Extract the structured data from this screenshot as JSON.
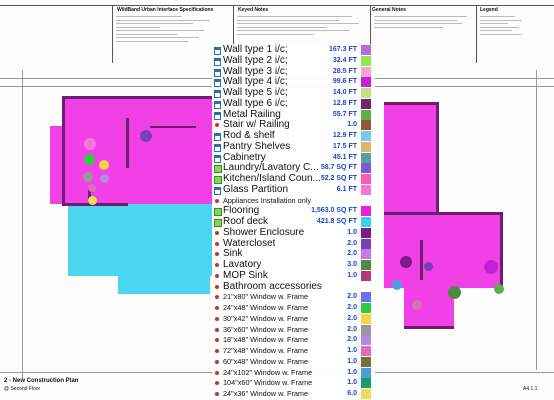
{
  "header": {
    "spec_title": "WildBand Urban Interface Specifications",
    "keyed_notes_title": "Keyed Notes",
    "general_notes_title": "General Notes",
    "legend_title": "Legend"
  },
  "takeoff_items": [
    {
      "label": "Wall type 1 i/c;",
      "qty": "167.3 FT",
      "icon": "wall-icon",
      "color": "#b86cd8"
    },
    {
      "label": "Wall type 2 i/c;",
      "qty": "32.4 FT",
      "icon": "wall-icon",
      "color": "#8ee84e"
    },
    {
      "label": "Wall type 3 i/c;",
      "qty": "28.5 FT",
      "icon": "wall-icon",
      "color": "#f3a6d6"
    },
    {
      "label": "Wall type 4 i/c;",
      "qty": "99.6 FT",
      "icon": "wall-icon",
      "color": "#c61fd6"
    },
    {
      "label": "Wall type 5 i/c;",
      "qty": "14.0 FT",
      "icon": "wall-icon",
      "color": "#bfe28a"
    },
    {
      "label": "Wall type 6 i/c;",
      "qty": "12.8 FT",
      "icon": "wall-icon",
      "color": "#7a1e6e"
    },
    {
      "label": "Metal Railing",
      "qty": "55.7 FT",
      "icon": "wall-icon",
      "color": "#5fae4a"
    },
    {
      "label": "Stair w/ Railing",
      "qty": "1.0",
      "icon": "dot-icon",
      "color": "#8a5a3a"
    },
    {
      "label": "Rod & shelf",
      "qty": "12.9 FT",
      "icon": "wall-icon",
      "color": "#7cc8e8"
    },
    {
      "label": "Pantry Shelves",
      "qty": "17.5 FT",
      "icon": "wall-icon",
      "color": "#d9b86a"
    },
    {
      "label": "Cabinetry",
      "qty": "45.1 FT",
      "icon": "wall-icon",
      "color": "#5f9ea0"
    },
    {
      "label": "Laundry/Lavatory C...",
      "qty": "58.7 SQ FT",
      "icon": "area-icon",
      "color": "#7a5ad8"
    },
    {
      "label": "Kitchen/Island Coun...",
      "qty": "52.2 SQ FT",
      "icon": "area-icon",
      "color": "#ff5ab4"
    },
    {
      "label": "Glass Partition",
      "qty": "6.1 FT",
      "icon": "wall-icon",
      "color": "#f07ad8"
    },
    {
      "label": "Appliances Installation only",
      "qty": "",
      "icon": "dot-icon",
      "color": ""
    },
    {
      "label": "Flooring",
      "qty": "1,563.0 SQ FT",
      "icon": "area-icon",
      "color": "#ee1ee0"
    },
    {
      "label": "Roof deck",
      "qty": "421.8 SQ FT",
      "icon": "area-icon",
      "color": "#36d2f0"
    },
    {
      "label": "Shower Enclosure",
      "qty": "1.0",
      "icon": "dot-icon",
      "color": "#7d1a84"
    },
    {
      "label": "Watercloset",
      "qty": "2.0",
      "icon": "dot-icon",
      "color": "#7a3fb2"
    },
    {
      "label": "Sink",
      "qty": "2.0",
      "icon": "dot-icon",
      "color": "#c879e4"
    },
    {
      "label": "Lavatory",
      "qty": "3.0",
      "icon": "dot-icon",
      "color": "#4e8a44"
    },
    {
      "label": "MOP Sink",
      "qty": "1.0",
      "icon": "dot-icon",
      "color": "#b13a7c"
    },
    {
      "label": "Bathroom accessories",
      "qty": "",
      "icon": "dot-icon",
      "color": ""
    },
    {
      "label": "21\"x80\" Window w. Frame",
      "qty": "2.0",
      "icon": "dot-icon",
      "color": "#6e6ef0"
    },
    {
      "label": "24\"x48\" Window w. Frame",
      "qty": "2.0",
      "icon": "dot-icon",
      "color": "#2ecc40"
    },
    {
      "label": "30\"x42\" Window w. Frame",
      "qty": "2.0",
      "icon": "dot-icon",
      "color": "#f3d34a"
    },
    {
      "label": "36\"x60\" Window w. Frame",
      "qty": "2.0",
      "icon": "dot-icon",
      "color": "#999999"
    },
    {
      "label": "18\"x48\" Window w. Frame",
      "qty": "2.0",
      "icon": "dot-icon",
      "color": "#b388e8"
    },
    {
      "label": "72\"x48\" Window w. Frame",
      "qty": "1.0",
      "icon": "dot-icon",
      "color": "#dd6fb8"
    },
    {
      "label": "60\"x48\" Window w. Frame",
      "qty": "1.0",
      "icon": "dot-icon",
      "color": "#7a6f3a"
    },
    {
      "label": "24\"x102\" Window w. Frame",
      "qty": "1.0",
      "icon": "dot-icon",
      "color": "#4aa0d6"
    },
    {
      "label": "104\"x60\" Window w. Frame",
      "qty": "1.0",
      "icon": "dot-icon",
      "color": "#1f9a6a"
    },
    {
      "label": "24\"x36\" Window w. Frame",
      "qty": "6.0",
      "icon": "dot-icon",
      "color": "#e8e05a"
    }
  ],
  "plan": {
    "title": "2 - New Construction Plan",
    "subtitle": "@ Second Floor",
    "sheet_no": "A4.1.1"
  },
  "colors": {
    "flooring": "#ee1ee0",
    "roof_deck": "#36d2f0",
    "wall": "#6e1e6e",
    "qty_text": "#1a46c8",
    "dot_icon": "#c0392b"
  }
}
